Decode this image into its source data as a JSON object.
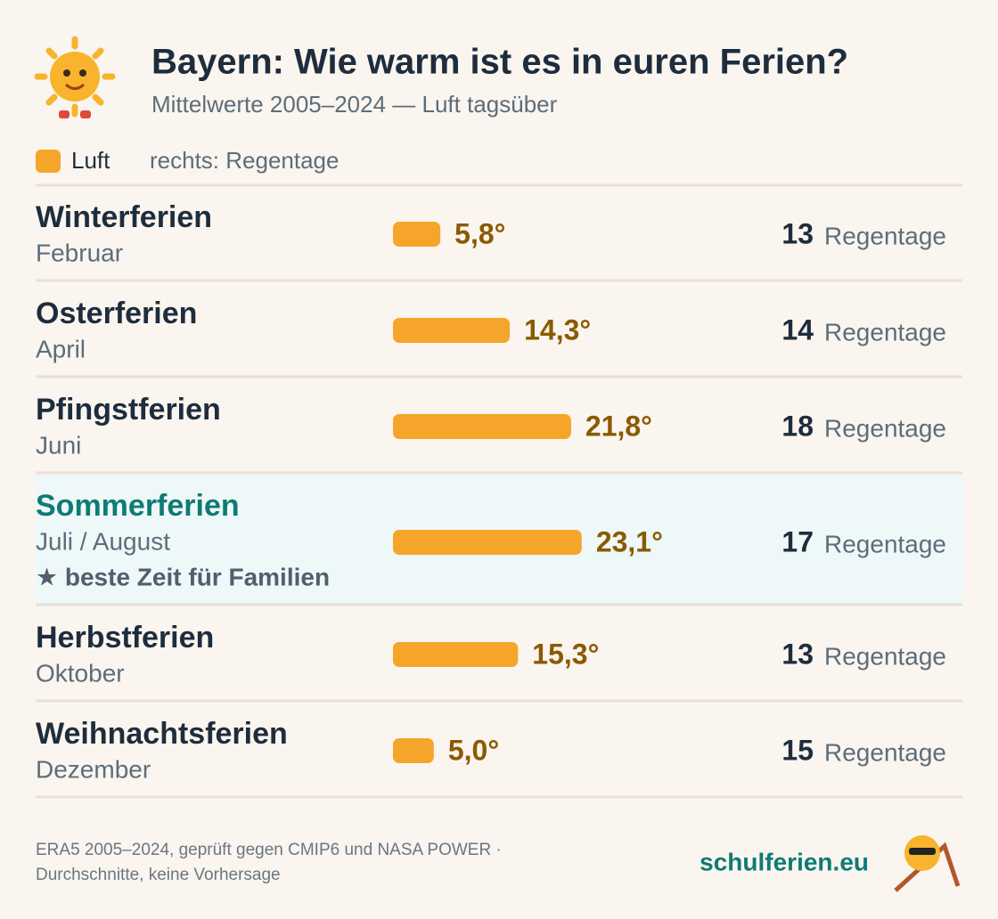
{
  "chart_data": {
    "type": "bar",
    "title": "Bayern: Wie warm ist es in euren Ferien?",
    "subtitle": "Mittelwerte 2005–2024 — Luft tagsüber",
    "legend_note": "rechts: Regentage",
    "categories": [
      "Winterferien",
      "Osterferien",
      "Pfingstferien",
      "Sommerferien",
      "Herbstferien",
      "Weihnachtsferien"
    ],
    "category_subtitles": [
      "Februar",
      "April",
      "Juni",
      "Juli / August",
      "Oktober",
      "Dezember"
    ],
    "highlight_index": 3,
    "highlight_color": "#0f7b74",
    "highlight_note": "★ beste Zeit für Familien",
    "series": [
      {
        "name": "Luft",
        "color": "#f5a52a",
        "values": [
          5.8,
          14.3,
          21.8,
          23.1,
          15.3,
          5.0
        ],
        "value_labels": [
          "5,8°",
          "14,3°",
          "21,8°",
          "23,1°",
          "15,3°",
          "5,0°"
        ]
      }
    ],
    "rain_days": {
      "unit": "Regentage",
      "values": [
        13,
        14,
        18,
        17,
        13,
        15
      ]
    },
    "footer": {
      "source_lines": [
        "ERA5 2005–2024, geprüft gegen CMIP6 und NASA POWER ·",
        "Durchschnitte, keine Vorhersage"
      ],
      "brand": "schulferien.eu"
    }
  }
}
